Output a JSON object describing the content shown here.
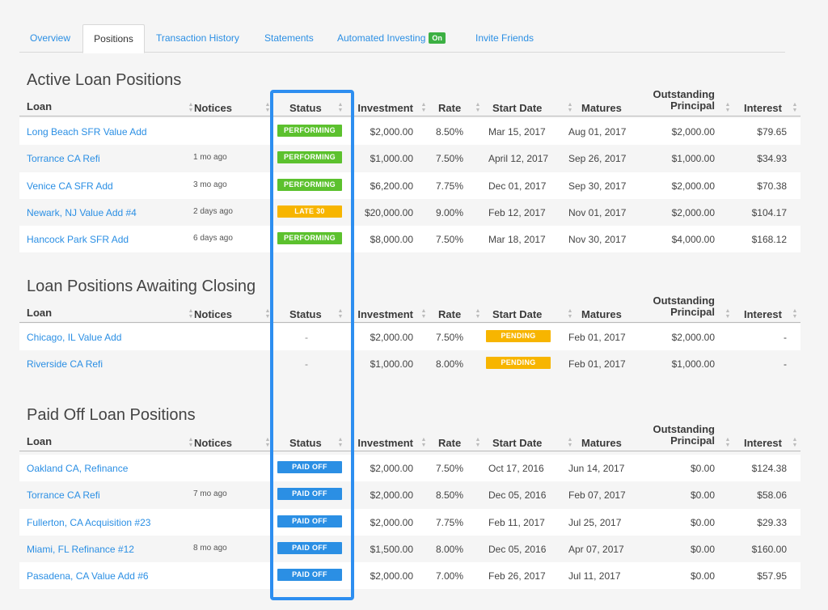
{
  "tabs": [
    {
      "label": "Overview"
    },
    {
      "label": "Positions"
    },
    {
      "label": "Transaction History"
    },
    {
      "label": "Statements"
    },
    {
      "label": "Automated Investing",
      "badge": "On"
    },
    {
      "label": "Invite Friends"
    }
  ],
  "columns": {
    "loan": "Loan",
    "notices": "Notices",
    "status": "Status",
    "investment": "Investment",
    "rate": "Rate",
    "start_date": "Start Date",
    "matures": "Matures",
    "outstanding_principal_line1": "Outstanding",
    "outstanding_principal_line2": "Principal",
    "interest": "Interest"
  },
  "colors": {
    "performing": "#5cc12e",
    "late": "#f7b500",
    "pending": "#f7b500",
    "paid_off": "#2b8fe4",
    "link": "#2b8fe4",
    "highlight": "#2d8ef0"
  },
  "sections": [
    {
      "title": "Active Loan Positions",
      "rows": [
        {
          "loan": "Long Beach SFR Value Add",
          "notices": "",
          "status": "PERFORMING",
          "status_kind": "performing",
          "investment": "$2,000.00",
          "rate": "8.50%",
          "start_date": "Mar 15, 2017",
          "matures": "Aug 01, 2017",
          "principal": "$2,000.00",
          "interest": "$79.65"
        },
        {
          "loan": "Torrance CA Refi",
          "notices": "1 mo ago",
          "status": "PERFORMING",
          "status_kind": "performing",
          "investment": "$1,000.00",
          "rate": "7.50%",
          "start_date": "April 12, 2017",
          "matures": "Sep 26, 2017",
          "principal": "$1,000.00",
          "interest": "$34.93"
        },
        {
          "loan": "Venice CA SFR Add",
          "notices": "3 mo ago",
          "status": "PERFORMING",
          "status_kind": "performing",
          "investment": "$6,200.00",
          "rate": "7.75%",
          "start_date": "Dec 01, 2017",
          "matures": "Sep 30, 2017",
          "principal": "$2,000.00",
          "interest": "$70.38"
        },
        {
          "loan": "Newark, NJ Value Add #4",
          "notices": "2 days ago",
          "status": "LATE 30",
          "status_kind": "late",
          "investment": "$20,000.00",
          "rate": "9.00%",
          "start_date": "Feb 12, 2017",
          "matures": "Nov 01, 2017",
          "principal": "$2,000.00",
          "interest": "$104.17"
        },
        {
          "loan": "Hancock Park SFR Add",
          "notices": "6 days ago",
          "status": "PERFORMING",
          "status_kind": "performing",
          "investment": "$8,000.00",
          "rate": "7.50%",
          "start_date": "Mar 18, 2017",
          "matures": "Nov 30, 2017",
          "principal": "$4,000.00",
          "interest": "$168.12"
        }
      ]
    },
    {
      "title": "Loan Positions Awaiting Closing",
      "rows": [
        {
          "loan": "Chicago, IL Value Add",
          "notices": "",
          "status": "-",
          "status_kind": "none",
          "investment": "$2,000.00",
          "rate": "7.50%",
          "start_date": "PENDING",
          "matures": "Feb 01, 2017",
          "principal": "$2,000.00",
          "interest": "-"
        },
        {
          "loan": "Riverside CA Refi",
          "notices": "",
          "status": "-",
          "status_kind": "none",
          "investment": "$1,000.00",
          "rate": "8.00%",
          "start_date": "PENDING",
          "matures": "Feb 01, 2017",
          "principal": "$1,000.00",
          "interest": "-"
        }
      ]
    },
    {
      "title": "Paid Off Loan Positions",
      "rows": [
        {
          "loan": "Oakland CA, Refinance",
          "notices": "",
          "status": "PAID OFF",
          "status_kind": "paid",
          "investment": "$2,000.00",
          "rate": "7.50%",
          "start_date": "Oct 17, 2016",
          "matures": "Jun 14, 2017",
          "principal": "$0.00",
          "interest": "$124.38"
        },
        {
          "loan": "Torrance CA Refi",
          "notices": "7 mo ago",
          "status": "PAID OFF",
          "status_kind": "paid",
          "investment": "$2,000.00",
          "rate": "8.50%",
          "start_date": "Dec 05, 2016",
          "matures": "Feb 07, 2017",
          "principal": "$0.00",
          "interest": "$58.06"
        },
        {
          "loan": "Fullerton, CA Acquisition #23",
          "notices": "",
          "status": "PAID OFF",
          "status_kind": "paid",
          "investment": "$2,000.00",
          "rate": "7.75%",
          "start_date": "Feb 11, 2017",
          "matures": "Jul 25, 2017",
          "principal": "$0.00",
          "interest": "$29.33"
        },
        {
          "loan": "Miami, FL Refinance #12",
          "notices": "8 mo ago",
          "status": "PAID OFF",
          "status_kind": "paid",
          "investment": "$1,500.00",
          "rate": "8.00%",
          "start_date": "Dec 05, 2016",
          "matures": "Apr 07, 2017",
          "principal": "$0.00",
          "interest": "$160.00"
        },
        {
          "loan": "Pasadena, CA Value Add #6",
          "notices": "",
          "status": "PAID OFF",
          "status_kind": "paid",
          "investment": "$2,000.00",
          "rate": "7.00%",
          "start_date": "Feb 26, 2017",
          "matures": "Jul 11, 2017",
          "principal": "$0.00",
          "interest": "$57.95"
        }
      ]
    }
  ]
}
